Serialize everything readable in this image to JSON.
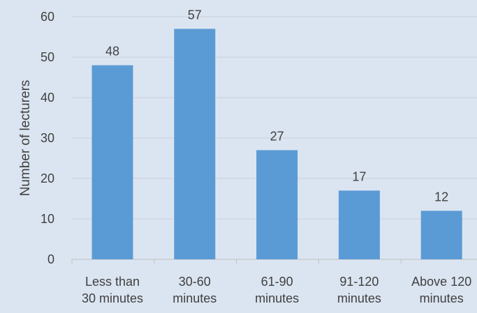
{
  "chart_data": {
    "type": "bar",
    "ylabel": "Number of lecturers",
    "categories": [
      [
        "Less than",
        "30 minutes"
      ],
      [
        "30-60",
        "minutes"
      ],
      [
        "61-90",
        "minutes"
      ],
      [
        "91-120",
        "minutes"
      ],
      [
        "Above 120",
        "minutes"
      ]
    ],
    "values": [
      48,
      57,
      27,
      17,
      12
    ],
    "ylim": [
      0,
      60
    ],
    "yticks": [
      0,
      10,
      20,
      30,
      40,
      50,
      60
    ],
    "grid": true,
    "legend": "none",
    "colors": {
      "bar": "#5b9bd5",
      "grid": "#c8d0db",
      "axis": "#bfbfbf",
      "text": "#404040",
      "background": "#dbe5f1"
    }
  }
}
